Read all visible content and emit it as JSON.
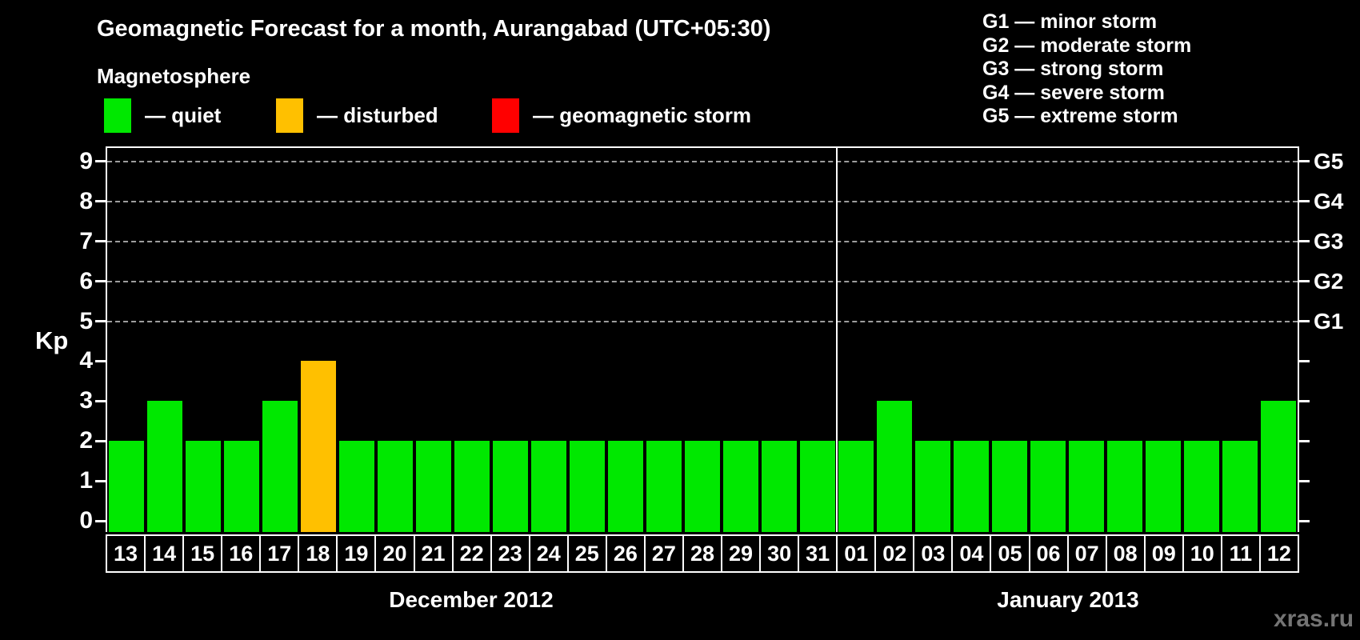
{
  "title": "Geomagnetic Forecast for a month, Aurangabad (UTC+05:30)",
  "legend": {
    "heading": "Magnetosphere",
    "items": [
      {
        "name": "quiet",
        "label": "— quiet",
        "color": "#00e800"
      },
      {
        "name": "disturbed",
        "label": "— disturbed",
        "color": "#ffc000"
      },
      {
        "name": "storm",
        "label": "— geomagnetic storm",
        "color": "#ff0000"
      }
    ]
  },
  "g_scale_legend": [
    "G1 — minor storm",
    "G2 — moderate storm",
    "G3 — strong storm",
    "G4 — severe storm",
    "G5 — extreme storm"
  ],
  "watermark": "xras.ru",
  "chart_data": {
    "type": "bar",
    "ylabel": "Kp",
    "ylim": [
      0,
      9
    ],
    "yticks": [
      0,
      1,
      2,
      3,
      4,
      5,
      6,
      7,
      8,
      9
    ],
    "grid_levels": [
      5,
      6,
      7,
      8,
      9
    ],
    "grid_style": "dashed",
    "right_axis": [
      {
        "label": "G1",
        "kp": 5
      },
      {
        "label": "G2",
        "kp": 6
      },
      {
        "label": "G3",
        "kp": 7
      },
      {
        "label": "G4",
        "kp": 8
      },
      {
        "label": "G5",
        "kp": 9
      }
    ],
    "status_colors": {
      "quiet": "#00e800",
      "disturbed": "#ffc000",
      "storm": "#ff0000"
    },
    "months": [
      {
        "label": "December 2012",
        "days": [
          {
            "day": "13",
            "kp": 2,
            "status": "quiet"
          },
          {
            "day": "14",
            "kp": 3,
            "status": "quiet"
          },
          {
            "day": "15",
            "kp": 2,
            "status": "quiet"
          },
          {
            "day": "16",
            "kp": 2,
            "status": "quiet"
          },
          {
            "day": "17",
            "kp": 3,
            "status": "quiet"
          },
          {
            "day": "18",
            "kp": 4,
            "status": "disturbed"
          },
          {
            "day": "19",
            "kp": 2,
            "status": "quiet"
          },
          {
            "day": "20",
            "kp": 2,
            "status": "quiet"
          },
          {
            "day": "21",
            "kp": 2,
            "status": "quiet"
          },
          {
            "day": "22",
            "kp": 2,
            "status": "quiet"
          },
          {
            "day": "23",
            "kp": 2,
            "status": "quiet"
          },
          {
            "day": "24",
            "kp": 2,
            "status": "quiet"
          },
          {
            "day": "25",
            "kp": 2,
            "status": "quiet"
          },
          {
            "day": "26",
            "kp": 2,
            "status": "quiet"
          },
          {
            "day": "27",
            "kp": 2,
            "status": "quiet"
          },
          {
            "day": "28",
            "kp": 2,
            "status": "quiet"
          },
          {
            "day": "29",
            "kp": 2,
            "status": "quiet"
          },
          {
            "day": "30",
            "kp": 2,
            "status": "quiet"
          },
          {
            "day": "31",
            "kp": 2,
            "status": "quiet"
          }
        ]
      },
      {
        "label": "January 2013",
        "days": [
          {
            "day": "01",
            "kp": 2,
            "status": "quiet"
          },
          {
            "day": "02",
            "kp": 3,
            "status": "quiet"
          },
          {
            "day": "03",
            "kp": 2,
            "status": "quiet"
          },
          {
            "day": "04",
            "kp": 2,
            "status": "quiet"
          },
          {
            "day": "05",
            "kp": 2,
            "status": "quiet"
          },
          {
            "day": "06",
            "kp": 2,
            "status": "quiet"
          },
          {
            "day": "07",
            "kp": 2,
            "status": "quiet"
          },
          {
            "day": "08",
            "kp": 2,
            "status": "quiet"
          },
          {
            "day": "09",
            "kp": 2,
            "status": "quiet"
          },
          {
            "day": "10",
            "kp": 2,
            "status": "quiet"
          },
          {
            "day": "11",
            "kp": 2,
            "status": "quiet"
          },
          {
            "day": "12",
            "kp": 3,
            "status": "quiet"
          }
        ]
      }
    ]
  }
}
